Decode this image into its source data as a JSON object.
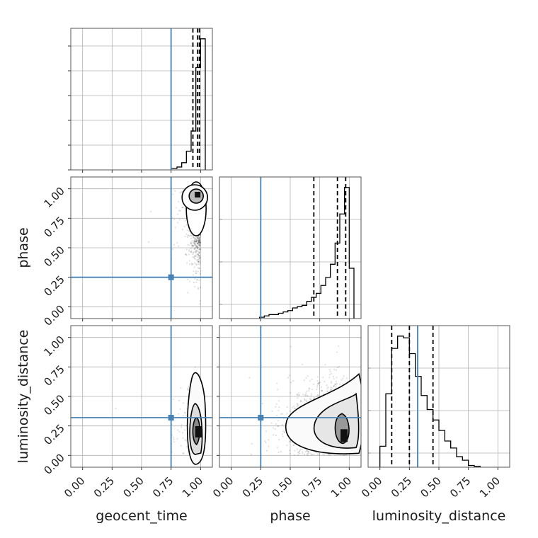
{
  "chart_data": {
    "type": "corner",
    "parameters": [
      "geocent_time",
      "phase",
      "luminosity_distance"
    ],
    "axis_labels": {
      "x": [
        "geocent_time",
        "phase",
        "luminosity_distance"
      ],
      "y": [
        "",
        "phase",
        "luminosity_distance"
      ]
    },
    "xlim": [
      -0.1,
      1.1
    ],
    "ticks": [
      0.0,
      0.25,
      0.5,
      0.75,
      1.0
    ],
    "tick_labels": [
      "0.00",
      "0.25",
      "0.50",
      "0.75",
      "1.00"
    ],
    "grid": true,
    "truth_color": "#4682b4",
    "truths": {
      "geocent_time": 0.75,
      "phase": 0.25,
      "luminosity_distance": 0.32
    },
    "quantiles_dashed": {
      "geocent_time": [
        0.935,
        0.975,
        0.99
      ],
      "phase": [
        0.7,
        0.9,
        0.97
      ],
      "luminosity_distance": [
        0.1,
        0.25,
        0.45
      ]
    },
    "histograms": {
      "geocent_time": {
        "bins": [
          0.75,
          0.8,
          0.84,
          0.88,
          0.92,
          0.96,
          1.0,
          1.04
        ],
        "heights": [
          0.01,
          0.02,
          0.05,
          0.13,
          0.27,
          0.71,
          0.91
        ]
      },
      "phase": {
        "bins": [
          0.24,
          0.28,
          0.32,
          0.36,
          0.4,
          0.44,
          0.48,
          0.52,
          0.56,
          0.6,
          0.64,
          0.68,
          0.72,
          0.76,
          0.8,
          0.84,
          0.88,
          0.92,
          0.96,
          1.0,
          1.04
        ],
        "heights": [
          0.01,
          0.02,
          0.03,
          0.03,
          0.04,
          0.05,
          0.06,
          0.08,
          0.09,
          0.1,
          0.13,
          0.16,
          0.19,
          0.25,
          0.31,
          0.41,
          0.57,
          0.79,
          0.99,
          0.38
        ]
      },
      "luminosity_distance": {
        "bins": [
          0.0,
          0.05,
          0.1,
          0.15,
          0.2,
          0.25,
          0.3,
          0.35,
          0.4,
          0.45,
          0.5,
          0.55,
          0.6,
          0.65,
          0.7,
          0.75,
          0.8,
          0.85
        ],
        "heights": [
          0.12,
          0.42,
          0.68,
          0.75,
          0.74,
          0.65,
          0.52,
          0.41,
          0.33,
          0.27,
          0.21,
          0.15,
          0.11,
          0.06,
          0.04,
          0.01,
          0.005
        ]
      }
    },
    "contour_panels": [
      {
        "x": "geocent_time",
        "y": "phase",
        "center": [
          0.975,
          0.95
        ]
      },
      {
        "x": "geocent_time",
        "y": "luminosity_distance",
        "center": [
          0.99,
          0.2
        ]
      },
      {
        "x": "phase",
        "y": "luminosity_distance",
        "center": [
          0.95,
          0.15
        ]
      }
    ]
  }
}
